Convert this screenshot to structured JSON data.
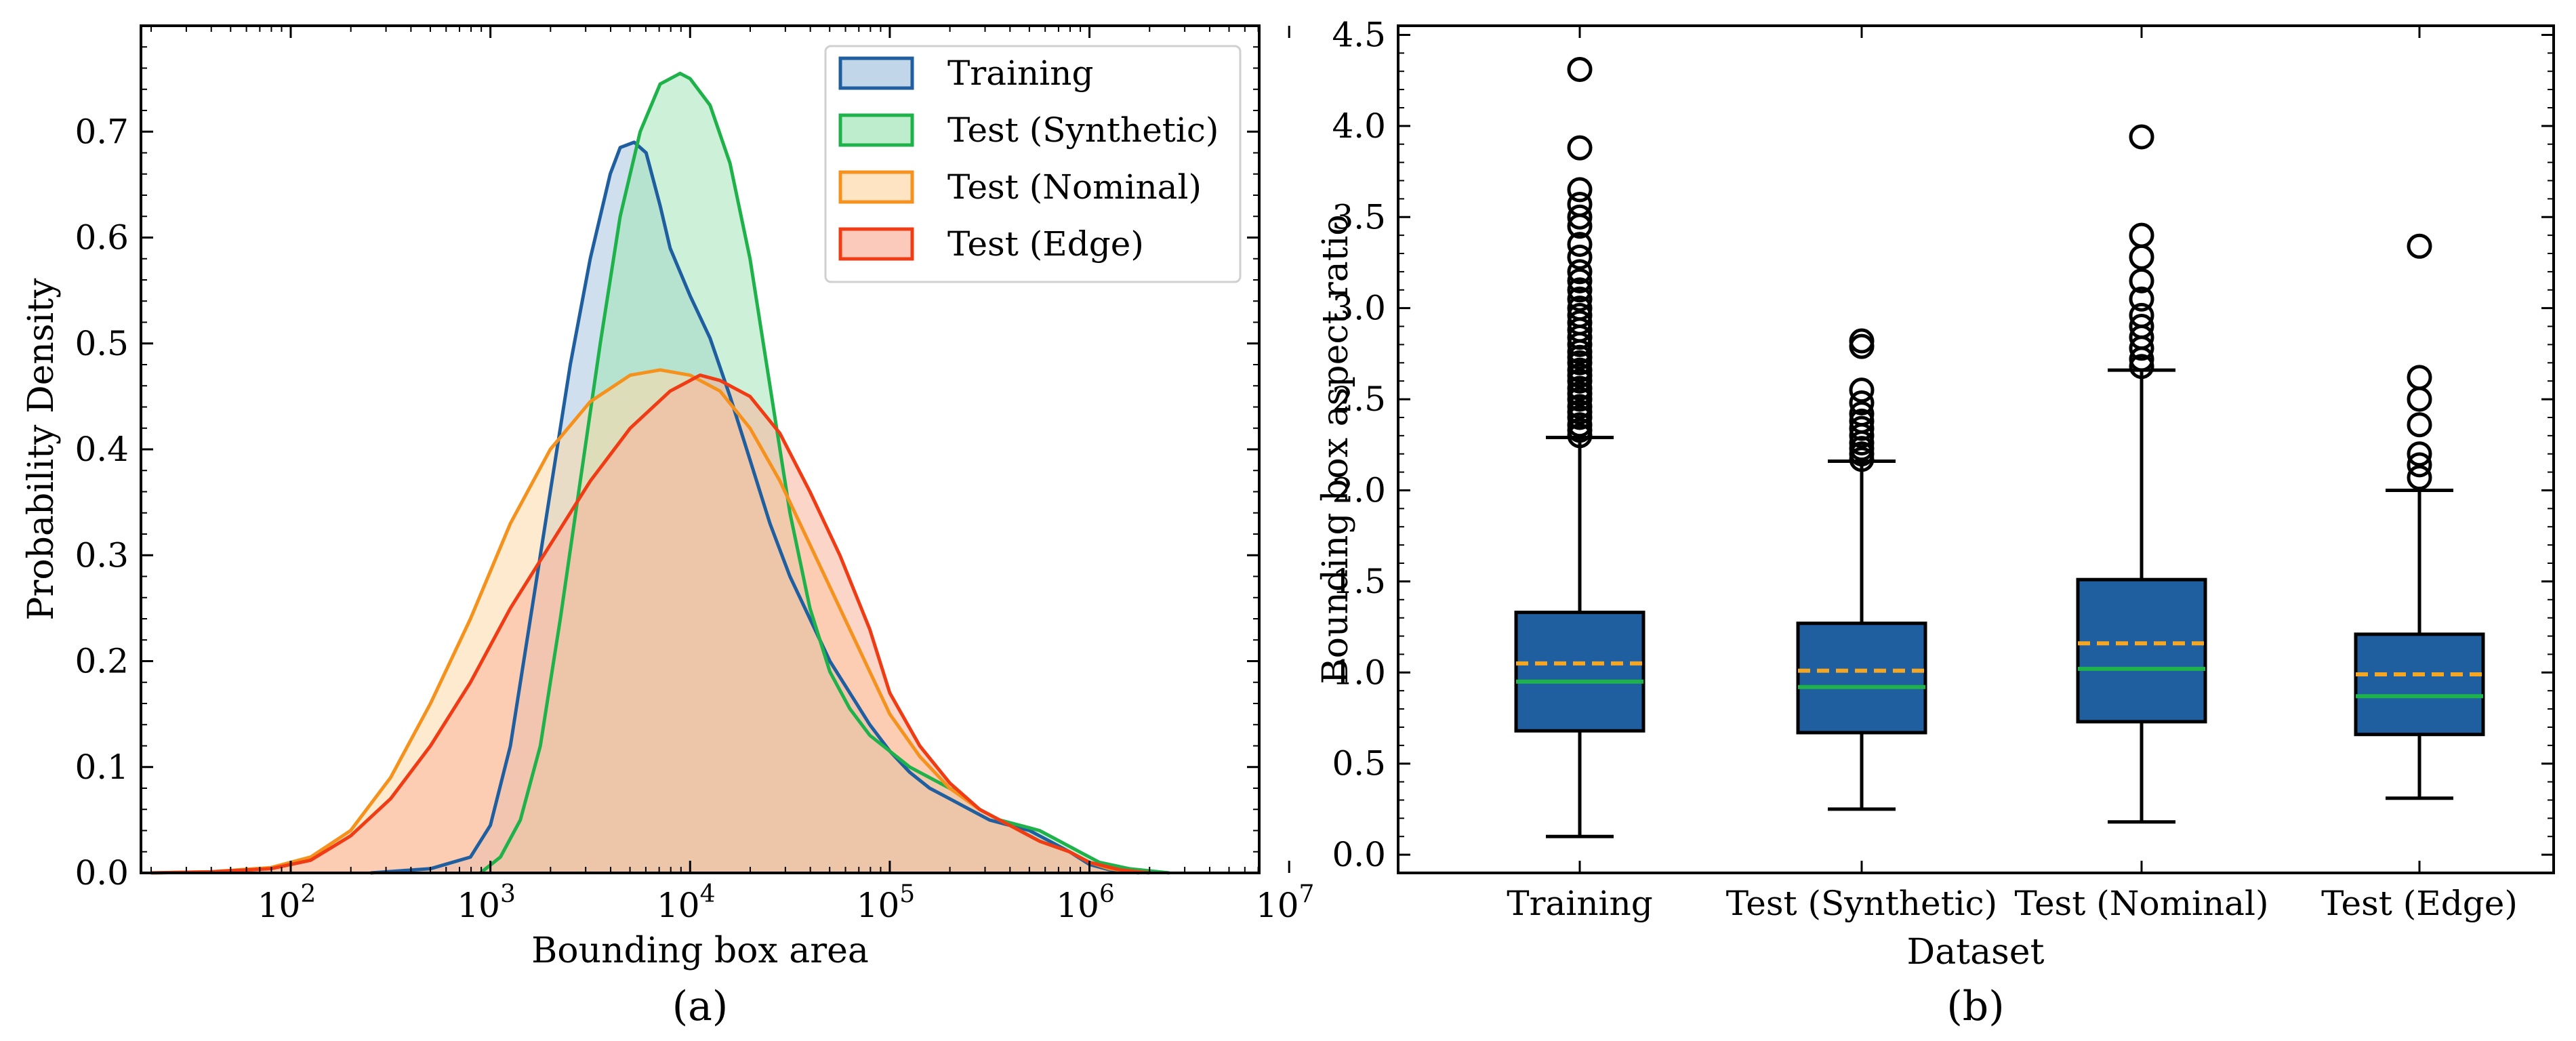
{
  "chart_data": [
    {
      "id": "a",
      "type": "area",
      "caption": "(a)",
      "xlabel": "Bounding box area",
      "ylabel": "Probability Density",
      "xscale": "log",
      "xlim_log10": [
        1.25,
        6.85
      ],
      "ylim": [
        0,
        0.8
      ],
      "xticks": [
        {
          "exp": 2,
          "base": "10",
          "sup": "2"
        },
        {
          "exp": 3,
          "base": "10",
          "sup": "3"
        },
        {
          "exp": 4,
          "base": "10",
          "sup": "4"
        },
        {
          "exp": 5,
          "base": "10",
          "sup": "5"
        },
        {
          "exp": 6,
          "base": "10",
          "sup": "6"
        },
        {
          "exp": 7,
          "base": "10",
          "sup": "7"
        }
      ],
      "yticks": [
        {
          "value": 0.0,
          "label": "0.0"
        },
        {
          "value": 0.1,
          "label": "0.1"
        },
        {
          "value": 0.2,
          "label": "0.2"
        },
        {
          "value": 0.3,
          "label": "0.3"
        },
        {
          "value": 0.4,
          "label": "0.4"
        },
        {
          "value": 0.5,
          "label": "0.5"
        },
        {
          "value": 0.6,
          "label": "0.6"
        },
        {
          "value": 0.7,
          "label": "0.7"
        }
      ],
      "legend_position": "top-right",
      "series": [
        {
          "name": "Training",
          "color": "#1f5fa0",
          "fill": "#a8c4e0",
          "points": [
            [
              2.4,
              0.0
            ],
            [
              2.7,
              0.004
            ],
            [
              2.9,
              0.015
            ],
            [
              3.0,
              0.045
            ],
            [
              3.1,
              0.12
            ],
            [
              3.2,
              0.24
            ],
            [
              3.3,
              0.36
            ],
            [
              3.4,
              0.48
            ],
            [
              3.5,
              0.58
            ],
            [
              3.6,
              0.66
            ],
            [
              3.65,
              0.685
            ],
            [
              3.72,
              0.69
            ],
            [
              3.78,
              0.68
            ],
            [
              3.85,
              0.63
            ],
            [
              3.9,
              0.59
            ],
            [
              4.0,
              0.545
            ],
            [
              4.1,
              0.505
            ],
            [
              4.2,
              0.45
            ],
            [
              4.3,
              0.39
            ],
            [
              4.4,
              0.33
            ],
            [
              4.5,
              0.28
            ],
            [
              4.6,
              0.24
            ],
            [
              4.7,
              0.2
            ],
            [
              4.8,
              0.17
            ],
            [
              4.9,
              0.14
            ],
            [
              5.0,
              0.115
            ],
            [
              5.1,
              0.095
            ],
            [
              5.2,
              0.08
            ],
            [
              5.3,
              0.07
            ],
            [
              5.4,
              0.06
            ],
            [
              5.5,
              0.05
            ],
            [
              5.6,
              0.045
            ],
            [
              5.7,
              0.04
            ],
            [
              5.8,
              0.03
            ],
            [
              5.9,
              0.02
            ],
            [
              6.0,
              0.008
            ],
            [
              6.1,
              0.003
            ],
            [
              6.25,
              0.0
            ]
          ]
        },
        {
          "name": "Test (Synthetic)",
          "color": "#1fb24a",
          "fill": "#a3e6b8",
          "points": [
            [
              2.95,
              0.0
            ],
            [
              3.05,
              0.015
            ],
            [
              3.15,
              0.05
            ],
            [
              3.25,
              0.12
            ],
            [
              3.35,
              0.24
            ],
            [
              3.45,
              0.37
            ],
            [
              3.55,
              0.5
            ],
            [
              3.65,
              0.62
            ],
            [
              3.75,
              0.7
            ],
            [
              3.85,
              0.745
            ],
            [
              3.95,
              0.755
            ],
            [
              4.0,
              0.75
            ],
            [
              4.1,
              0.725
            ],
            [
              4.2,
              0.67
            ],
            [
              4.3,
              0.58
            ],
            [
              4.4,
              0.46
            ],
            [
              4.5,
              0.34
            ],
            [
              4.6,
              0.25
            ],
            [
              4.7,
              0.19
            ],
            [
              4.8,
              0.155
            ],
            [
              4.9,
              0.13
            ],
            [
              5.0,
              0.115
            ],
            [
              5.1,
              0.1
            ],
            [
              5.2,
              0.09
            ],
            [
              5.35,
              0.075
            ],
            [
              5.45,
              0.06
            ],
            [
              5.55,
              0.05
            ],
            [
              5.65,
              0.045
            ],
            [
              5.75,
              0.04
            ],
            [
              5.85,
              0.03
            ],
            [
              5.95,
              0.02
            ],
            [
              6.05,
              0.01
            ],
            [
              6.2,
              0.004
            ],
            [
              6.4,
              0.0
            ]
          ]
        },
        {
          "name": "Test (Nominal)",
          "color": "#f5921e",
          "fill": "#fdd9a8",
          "points": [
            [
              1.3,
              0.0
            ],
            [
              1.6,
              0.001
            ],
            [
              1.9,
              0.005
            ],
            [
              2.1,
              0.015
            ],
            [
              2.3,
              0.04
            ],
            [
              2.5,
              0.09
            ],
            [
              2.7,
              0.16
            ],
            [
              2.9,
              0.24
            ],
            [
              3.1,
              0.33
            ],
            [
              3.3,
              0.4
            ],
            [
              3.5,
              0.445
            ],
            [
              3.7,
              0.47
            ],
            [
              3.85,
              0.475
            ],
            [
              4.0,
              0.47
            ],
            [
              4.15,
              0.455
            ],
            [
              4.3,
              0.42
            ],
            [
              4.45,
              0.37
            ],
            [
              4.6,
              0.31
            ],
            [
              4.75,
              0.25
            ],
            [
              4.9,
              0.19
            ],
            [
              5.0,
              0.15
            ],
            [
              5.15,
              0.11
            ],
            [
              5.3,
              0.08
            ],
            [
              5.45,
              0.06
            ],
            [
              5.6,
              0.045
            ],
            [
              5.75,
              0.03
            ],
            [
              5.9,
              0.02
            ],
            [
              6.0,
              0.01
            ],
            [
              6.1,
              0.004
            ],
            [
              6.25,
              0.0
            ]
          ]
        },
        {
          "name": "Test (Edge)",
          "color": "#f03c14",
          "fill": "#f9b39c",
          "points": [
            [
              1.3,
              0.0
            ],
            [
              1.6,
              0.001
            ],
            [
              1.9,
              0.004
            ],
            [
              2.1,
              0.012
            ],
            [
              2.3,
              0.035
            ],
            [
              2.5,
              0.07
            ],
            [
              2.7,
              0.12
            ],
            [
              2.9,
              0.18
            ],
            [
              3.1,
              0.25
            ],
            [
              3.3,
              0.31
            ],
            [
              3.5,
              0.37
            ],
            [
              3.7,
              0.42
            ],
            [
              3.9,
              0.455
            ],
            [
              4.05,
              0.47
            ],
            [
              4.15,
              0.465
            ],
            [
              4.3,
              0.45
            ],
            [
              4.45,
              0.415
            ],
            [
              4.6,
              0.36
            ],
            [
              4.75,
              0.3
            ],
            [
              4.9,
              0.23
            ],
            [
              5.0,
              0.17
            ],
            [
              5.15,
              0.12
            ],
            [
              5.3,
              0.085
            ],
            [
              5.45,
              0.06
            ],
            [
              5.6,
              0.045
            ],
            [
              5.75,
              0.03
            ],
            [
              5.9,
              0.02
            ],
            [
              6.0,
              0.01
            ],
            [
              6.15,
              0.003
            ],
            [
              6.3,
              0.0
            ]
          ]
        }
      ]
    },
    {
      "id": "b",
      "type": "box",
      "caption": "(b)",
      "xlabel": "Dataset",
      "ylabel": "Bounding box aspect ratio",
      "ylim": [
        -0.1,
        4.55
      ],
      "yticks": [
        {
          "value": 0.0,
          "label": "0.0"
        },
        {
          "value": 0.5,
          "label": "0.5"
        },
        {
          "value": 1.0,
          "label": "1.0"
        },
        {
          "value": 1.5,
          "label": "1.5"
        },
        {
          "value": 2.0,
          "label": "2.0"
        },
        {
          "value": 2.5,
          "label": "2.5"
        },
        {
          "value": 3.0,
          "label": "3.0"
        },
        {
          "value": 3.5,
          "label": "3.5"
        },
        {
          "value": 4.0,
          "label": "4.0"
        },
        {
          "value": 4.5,
          "label": "4.5"
        }
      ],
      "box_color": "#1f5fa0",
      "median_color": "#1fb24a",
      "mean_color": "#f5a623",
      "boxes": [
        {
          "label": "Training",
          "whisker_low": 0.1,
          "q1": 0.68,
          "median": 0.95,
          "mean": 1.05,
          "q3": 1.33,
          "whisker_high": 2.29,
          "outliers": [
            2.3,
            2.33,
            2.36,
            2.4,
            2.43,
            2.46,
            2.5,
            2.53,
            2.56,
            2.6,
            2.63,
            2.66,
            2.7,
            2.73,
            2.76,
            2.8,
            2.84,
            2.88,
            2.92,
            2.96,
            3.0,
            3.05,
            3.1,
            3.15,
            3.2,
            3.28,
            3.35,
            3.45,
            3.5,
            3.57,
            3.65,
            3.88,
            4.31
          ]
        },
        {
          "label": "Test (Synthetic)",
          "whisker_low": 0.25,
          "q1": 0.67,
          "median": 0.92,
          "mean": 1.01,
          "q3": 1.27,
          "whisker_high": 2.16,
          "outliers": [
            2.17,
            2.2,
            2.23,
            2.26,
            2.3,
            2.34,
            2.38,
            2.42,
            2.48,
            2.55,
            2.79,
            2.82
          ]
        },
        {
          "label": "Test (Nominal)",
          "whisker_low": 0.18,
          "q1": 0.73,
          "median": 1.02,
          "mean": 1.16,
          "q3": 1.51,
          "whisker_high": 2.66,
          "outliers": [
            2.68,
            2.72,
            2.78,
            2.84,
            2.9,
            2.96,
            3.05,
            3.15,
            3.28,
            3.4,
            3.94
          ]
        },
        {
          "label": "Test (Edge)",
          "whisker_low": 0.31,
          "q1": 0.66,
          "median": 0.87,
          "mean": 0.99,
          "q3": 1.21,
          "whisker_high": 2.0,
          "outliers": [
            2.07,
            2.14,
            2.2,
            2.36,
            2.5,
            2.62,
            3.34
          ]
        }
      ]
    }
  ]
}
